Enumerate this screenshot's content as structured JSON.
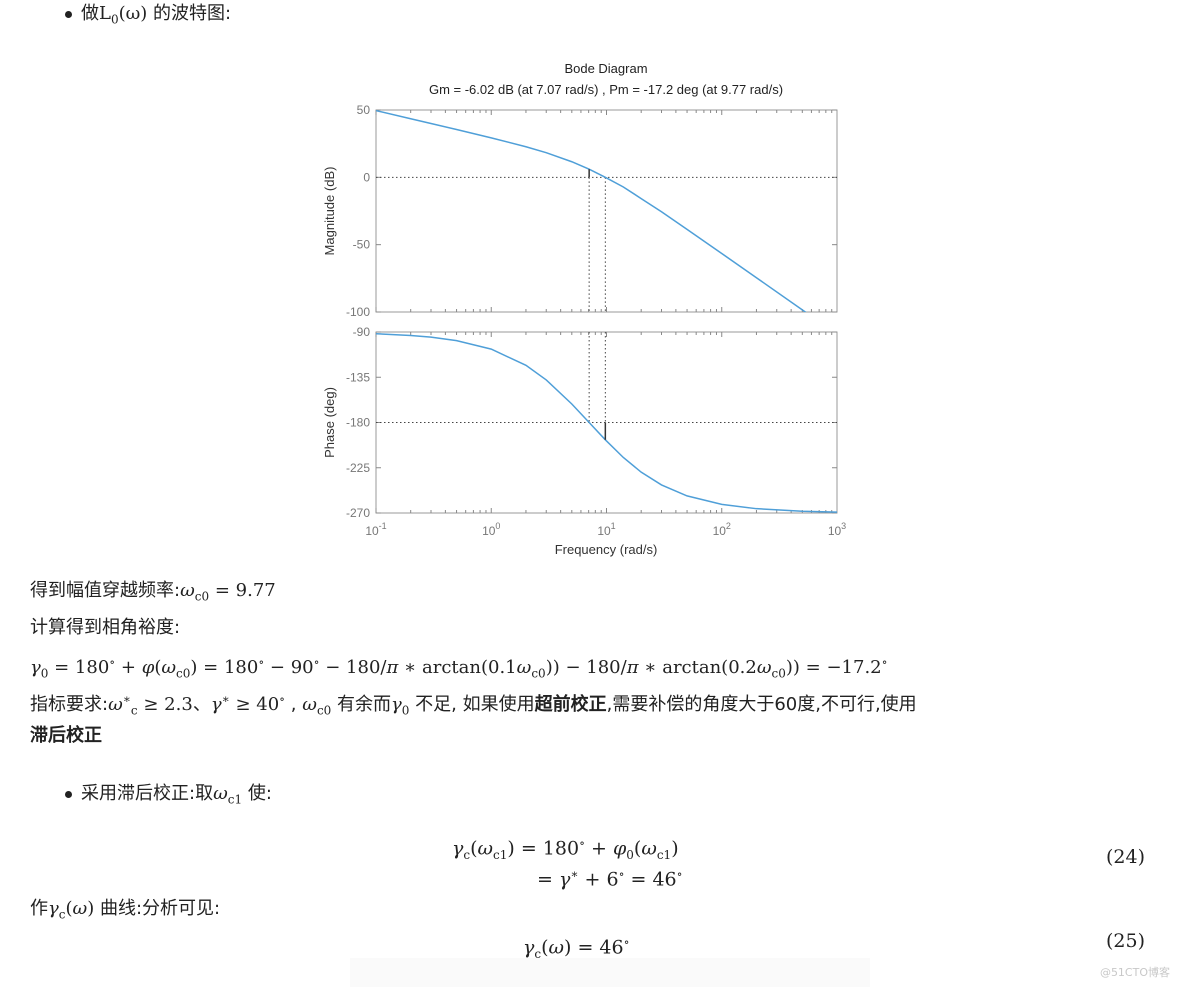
{
  "intro_bullet": {
    "prefix": "做",
    "math": "L_{0}(ω)",
    "suffix": " 的波特图:"
  },
  "chart_data": {
    "type": "line",
    "title": "Bode Diagram",
    "subtitle": "Gm = -6.02 dB (at 7.07 rad/s) ,  Pm = -17.2 deg (at 9.77 rad/s)",
    "xlabel": "Frequency  (rad/s)",
    "xscale": "log",
    "xlim": [
      0.1,
      1000
    ],
    "x_ticks": [
      "10^{-1}",
      "10^{0}",
      "10^{1}",
      "10^{2}",
      "10^{3}"
    ],
    "x": [
      0.1,
      0.2,
      0.3,
      0.5,
      1,
      2,
      3,
      5,
      7.07,
      9.77,
      14,
      20,
      30,
      50,
      100,
      200,
      500,
      1000
    ],
    "panels": [
      {
        "ylabel": "Magnitude (dB)",
        "ylim": [
          -100,
          50
        ],
        "y_ticks": [
          "50",
          "0",
          "-50",
          "-100"
        ],
        "y_tick_values": [
          50,
          0,
          -50,
          -100
        ],
        "values": [
          49.54,
          43.51,
          39.98,
          35.51,
          29.33,
          22.71,
          18.29,
          11.58,
          6.02,
          0.0,
          -7.15,
          -15.77,
          -25.56,
          -38.63,
          -56.53,
          -74.56,
          -98.42,
          -116.5
        ],
        "reference_line": 0
      },
      {
        "ylabel": "Phase (deg)",
        "ylim": [
          -270,
          -90
        ],
        "y_ticks": [
          "-90",
          "-135",
          "-180",
          "-225",
          "-270"
        ],
        "y_tick_values": [
          -90,
          -135,
          -180,
          -225,
          -270
        ],
        "values": [
          -91.72,
          -93.43,
          -95.15,
          -98.57,
          -107.02,
          -123.11,
          -137.66,
          -161.57,
          -180,
          -197.2,
          -214.8,
          -229.4,
          -242.1,
          -252.98,
          -261.43,
          -265.71,
          -268.28,
          -269.14
        ],
        "reference_line": -180
      }
    ],
    "gain_margin": {
      "value_db": -6.02,
      "freq": 7.07
    },
    "phase_margin": {
      "value_deg": -17.2,
      "freq": 9.77
    },
    "line_color": "#4f9fd8",
    "grid": false
  },
  "text": {
    "wc0_label": "得到幅值穿越频率:",
    "wc0_math": "<i>ω</i>_{c0} = 9.77",
    "pm_label": "计算得到相角裕度:",
    "gamma_eq": "<i>γ</i>_{0} = 180^{∘} + <i>φ</i>(<i>ω</i>_{c0}) = 180^{∘} − 90^{∘} − 180/<i>π</i> ∗ arctan(0.1<i>ω</i>_{c0})) − 180/<i>π</i> ∗ arctan(0.2<i>ω</i>_{c0})) = −17.2^{∘}",
    "req_1": "指标要求:",
    "req_math1": "<i>ω</i>^{∗}_{c} ≥ 2.3",
    "req_2": "、",
    "req_math2": "<i>γ</i>^{∗} ≥ 40^{∘}",
    "req_3": " ,",
    "req_math3": "<i>ω</i>_{c0}",
    "req_4": " 有余而",
    "req_math4": "<i>γ</i>_{0}",
    "req_5": " 不足, 如果使用",
    "req_bold1": "超前校正",
    "req_6": ",需要补偿的角度大于60度,不可行,使用",
    "req_bold2": "滞后校正",
    "bullet2_prefix": "采用滞后校正:取",
    "bullet2_math": "<i>ω</i>_{c1}",
    "bullet2_suffix": " 使:",
    "eq24_line1": "<i>γ</i>_{c}(<i>ω</i>_{c1}) = 180^{∘} + <i>φ</i>_{0}(<i>ω</i>_{c1})",
    "eq24_line2": "= <i>γ</i>^{∗} + 6^{∘} = 46^{∘}",
    "eq24_num": "(24)",
    "curve_prefix": "作",
    "curve_math": "<i>γ</i>_{c}(<i>ω</i>)",
    "curve_suffix": " 曲线:分析可见:",
    "eq25": "<i>γ</i>_{c}(<i>ω</i>) = 46^{∘}",
    "eq25_num": "(25)"
  },
  "watermark": "@51CTO博客"
}
